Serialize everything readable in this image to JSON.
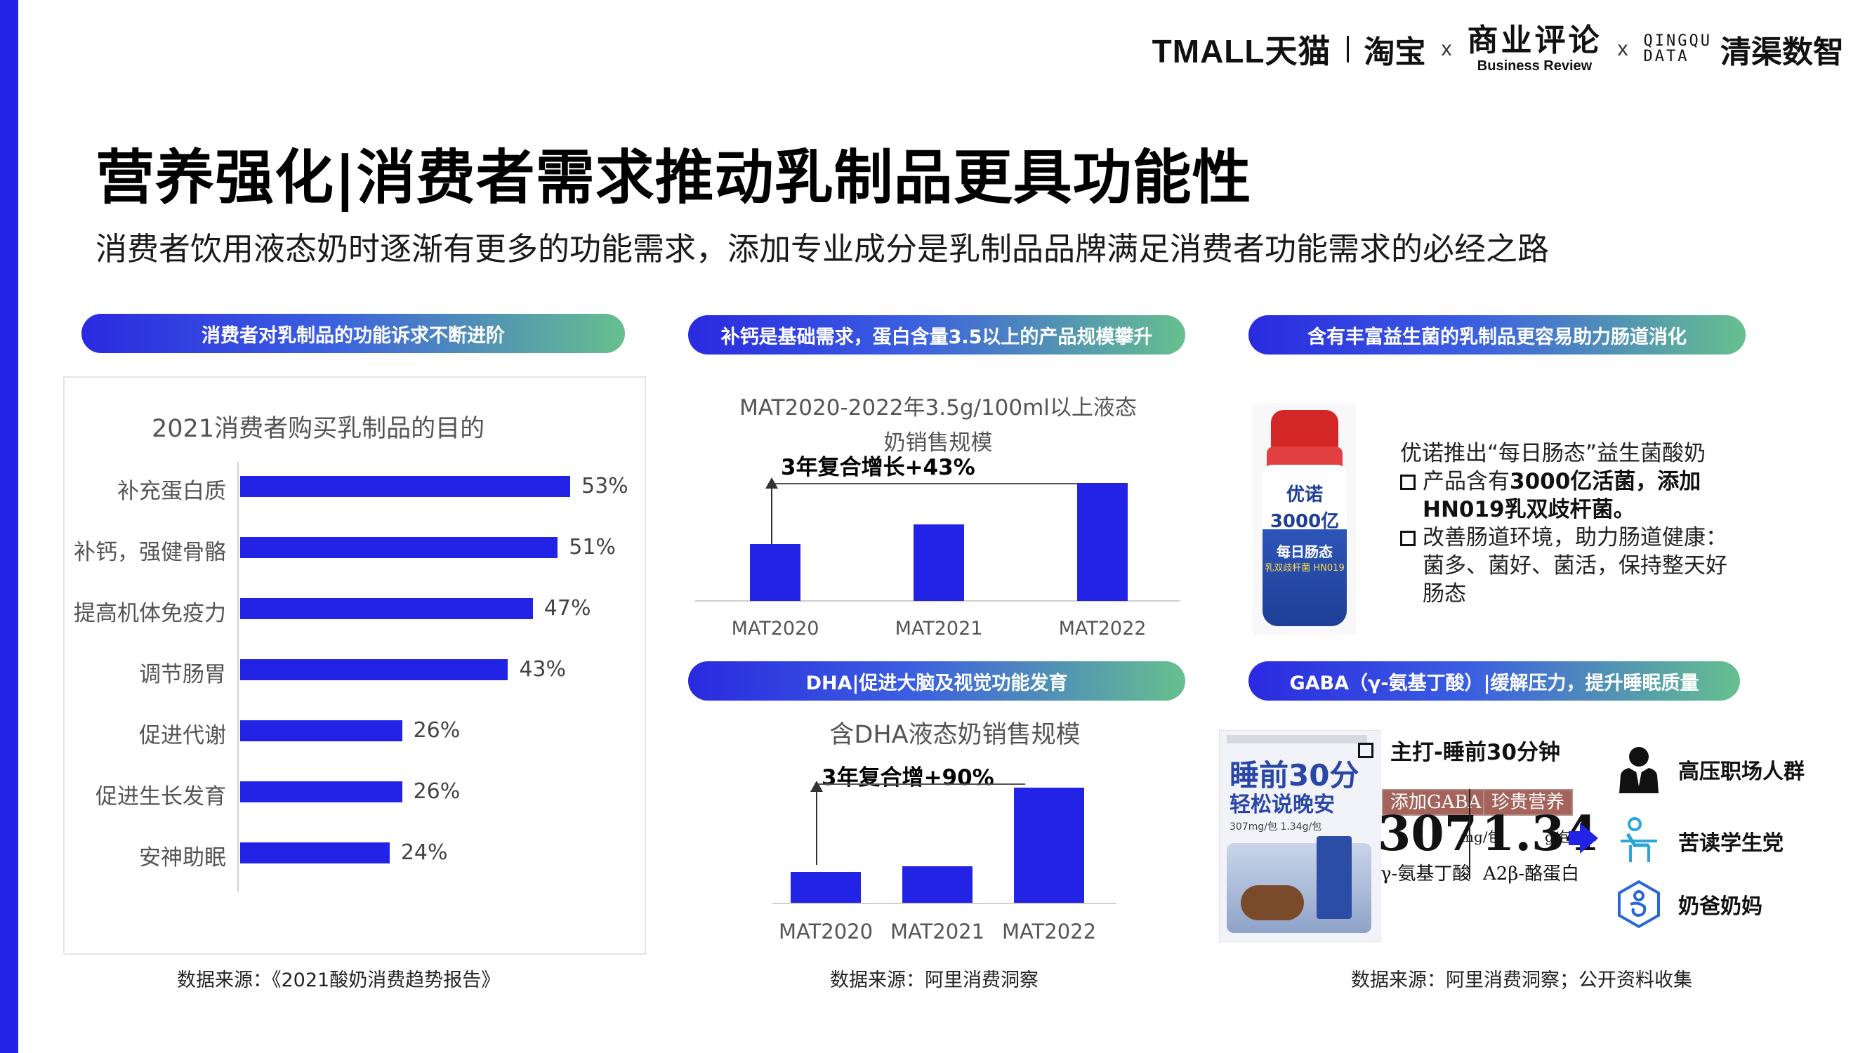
{
  "brands": {
    "tmall": "TMALL",
    "tmall_cn": "天猫",
    "taobao": "淘宝",
    "x": "x",
    "br_cn": "商业评论",
    "br_en": "Business Review",
    "qingqu_line1": "QINGQU",
    "qingqu_line2": "DATA",
    "qingqu_cn": "清渠数智"
  },
  "title": "营养强化|消费者需求推动乳制品更具功能性",
  "subtitle": "消费者饮用液态奶时逐渐有更多的功能需求，添加专业成分是乳制品品牌满足消费者功能需求的必经之路",
  "sections": {
    "s1": "消费者对乳制品的功能诉求不断进阶",
    "s2": "补钙是基础需求，蛋白含量3.5以上的产品规模攀升",
    "s3": "含有丰富益生菌的乳制品更容易助力肠道消化",
    "s4": "DHA|促进大脑及视觉功能发育",
    "s5": "GABA（γ-氨基丁酸）|缓解压力，提升睡眠质量"
  },
  "chart_data": [
    {
      "type": "bar",
      "orientation": "horizontal",
      "title": "2021消费者购买乳制品的目的",
      "categories": [
        "补充蛋白质",
        "补钙，强健骨骼",
        "提高机体免疫力",
        "调节肠胃",
        "促进代谢",
        "促进生长发育",
        "安神助眠"
      ],
      "values": [
        53,
        51,
        47,
        43,
        26,
        26,
        24
      ],
      "value_labels": [
        "53%",
        "51%",
        "47%",
        "43%",
        "26%",
        "26%",
        "24%"
      ],
      "unit": "%",
      "color": "#2323e6",
      "source": "数据来源：《2021酸奶消费趋势报告》"
    },
    {
      "type": "bar",
      "title": "MAT2020-2022年3.5g/100ml以上液态奶销售规模",
      "categories": [
        "MAT2020",
        "MAT2021",
        "MAT2022"
      ],
      "values": [
        48,
        65,
        100
      ],
      "annotation": "3年复合增长+43%",
      "color": "#2323e6",
      "source": "数据来源：阿里消费洞察"
    },
    {
      "type": "bar",
      "title": "含DHA液态奶销售规模",
      "categories": [
        "MAT2020",
        "MAT2021",
        "MAT2022"
      ],
      "values": [
        27,
        32,
        100
      ],
      "annotation": "3年复合增+90%",
      "color": "#2323e6"
    }
  ],
  "probiotic": {
    "product_brand": "优诺",
    "product_count": "3000亿",
    "product_name": "每日肠态",
    "product_hn": "乳双歧杆菌 HN019",
    "intro": "优诺推出“每日肠态”益生菌酸奶",
    "b1_pre": "产品含有",
    "b1_bold": "3000亿活菌，添加",
    "b1_bold2": "HN019乳双歧杆菌。",
    "b2_line1": "改善肠道环境，助力肠道健康：",
    "b2_line2": "菌多、菌好、菌活，保持整天好",
    "b2_line3": "肠态"
  },
  "gaba": {
    "pack_t1": "睡前30分",
    "pack_t2": "轻松说晚安",
    "pack_mini": "307mg/包 1.34g/包",
    "pitch": "主打-睡前30分钟",
    "tag1": "添加GABA",
    "tag2": "珍贵营养",
    "val1": "307",
    "unit1": "mg/包",
    "sub1": "γ-氨基丁酸",
    "val2": "1.34",
    "unit2": "g/包",
    "sub2": "A2β-酪蛋白",
    "audience": [
      "高压职场人群",
      "苦读学生党",
      "奶爸奶妈"
    ],
    "source": "数据来源：阿里消费洞察；公开资料收集"
  },
  "sources": {
    "middle": "数据来源：阿里消费洞察"
  }
}
